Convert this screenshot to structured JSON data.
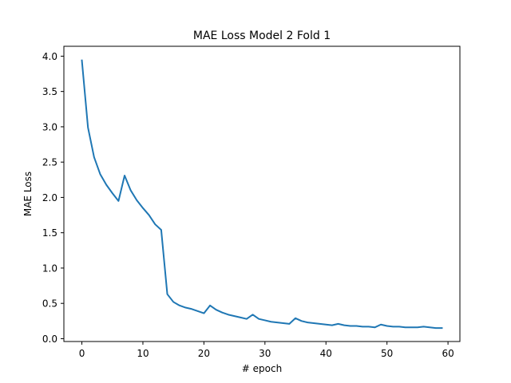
{
  "chart_data": {
    "type": "line",
    "title": "MAE Loss Model 2 Fold 1",
    "xlabel": "# epoch",
    "ylabel": "MAE Loss",
    "xlim": [
      -2.95,
      61.95
    ],
    "ylim": [
      -0.04,
      4.14
    ],
    "xticks": [
      0,
      10,
      20,
      30,
      40,
      50,
      60
    ],
    "yticks": [
      0.0,
      0.5,
      1.0,
      1.5,
      2.0,
      2.5,
      3.0,
      3.5,
      4.0
    ],
    "grid": false,
    "legend": "none",
    "series": [
      {
        "color": "#1f77b4",
        "x": [
          0,
          1,
          2,
          3,
          4,
          5,
          6,
          7,
          8,
          9,
          10,
          11,
          12,
          13,
          14,
          15,
          16,
          17,
          18,
          19,
          20,
          21,
          22,
          23,
          24,
          25,
          26,
          27,
          28,
          29,
          30,
          31,
          32,
          33,
          34,
          35,
          36,
          37,
          38,
          39,
          40,
          41,
          42,
          43,
          44,
          45,
          46,
          47,
          48,
          49,
          50,
          51,
          52,
          53,
          54,
          55,
          56,
          57,
          58,
          59
        ],
        "values": [
          3.94,
          2.99,
          2.57,
          2.33,
          2.18,
          2.06,
          1.95,
          2.31,
          2.1,
          1.96,
          1.85,
          1.75,
          1.62,
          1.54,
          0.63,
          0.52,
          0.47,
          0.44,
          0.42,
          0.39,
          0.36,
          0.47,
          0.41,
          0.37,
          0.34,
          0.32,
          0.3,
          0.28,
          0.34,
          0.28,
          0.26,
          0.24,
          0.23,
          0.22,
          0.21,
          0.29,
          0.25,
          0.23,
          0.22,
          0.21,
          0.2,
          0.19,
          0.21,
          0.19,
          0.18,
          0.18,
          0.17,
          0.17,
          0.16,
          0.2,
          0.18,
          0.17,
          0.17,
          0.16,
          0.16,
          0.16,
          0.17,
          0.16,
          0.15,
          0.15
        ]
      }
    ]
  }
}
